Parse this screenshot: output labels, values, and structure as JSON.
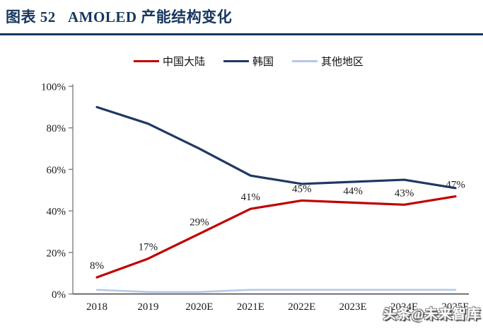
{
  "header": {
    "title": "图表 52   AMOLED 产能结构变化"
  },
  "legend": {
    "items": [
      {
        "label": "中国大陆",
        "color": "#c00000"
      },
      {
        "label": "韩国",
        "color": "#1f3864"
      },
      {
        "label": "其他地区",
        "color": "#b4c7e7"
      }
    ]
  },
  "watermark": {
    "text": "头条@未来智库"
  },
  "colors": {
    "title_navy": "#17375e",
    "axis_gray": "#808080",
    "baseline_gray": "#595959",
    "label_black": "#1a1a1a"
  },
  "chart_data": {
    "type": "line",
    "title": "AMOLED 产能结构变化",
    "categories": [
      "2018",
      "2019",
      "2020E",
      "2021E",
      "2022E",
      "2023E",
      "2024E",
      "2025E"
    ],
    "series": [
      {
        "name": "中国大陆",
        "color": "#c00000",
        "width": 3.2,
        "show_labels": true,
        "values": [
          8,
          17,
          29,
          41,
          45,
          44,
          43,
          47
        ],
        "labels": [
          "8%",
          "17%",
          "29%",
          "41%",
          "45%",
          "44%",
          "43%",
          "47%"
        ]
      },
      {
        "name": "韩国",
        "color": "#1f3864",
        "width": 3.2,
        "show_labels": false,
        "values": [
          90,
          82,
          70,
          57,
          53,
          54,
          55,
          51
        ]
      },
      {
        "name": "其他地区",
        "color": "#b4c7e7",
        "width": 2.5,
        "show_labels": false,
        "values": [
          2,
          1,
          1,
          2,
          2,
          2,
          2,
          2
        ]
      }
    ],
    "xlabel": "",
    "ylabel": "",
    "ylim": [
      0,
      100
    ],
    "ytick_step": 20,
    "yticks": [
      "0%",
      "20%",
      "40%",
      "60%",
      "80%",
      "100%"
    ],
    "grid": false,
    "legend_position": "top-center"
  }
}
